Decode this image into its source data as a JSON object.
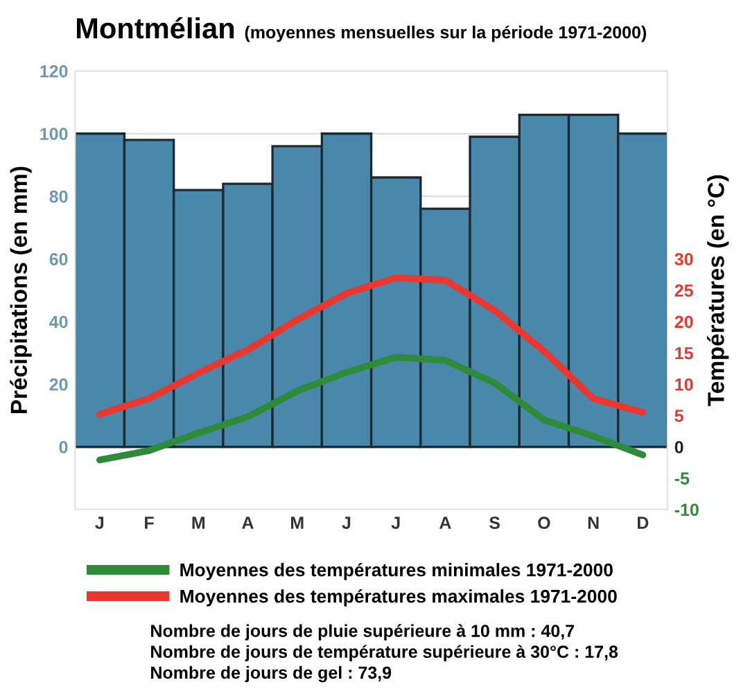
{
  "chart_data": {
    "type": "bar",
    "title": "Montmélian",
    "subtitle": "(moyennes mensuelles sur la période 1971-2000)",
    "ylabel": "Précipitations (en mm)",
    "y2label": "Températures (en °C)",
    "categories": [
      "J",
      "F",
      "M",
      "A",
      "M",
      "J",
      "J",
      "A",
      "S",
      "O",
      "N",
      "D"
    ],
    "series": [
      {
        "color": "#4a88ab",
        "values": [
          100,
          98,
          82,
          84,
          96,
          100,
          86,
          76,
          99,
          106,
          106,
          100
        ]
      },
      {
        "type": "line",
        "axis": "y2",
        "name": "Moyennes des températures minimales 1971-2000",
        "color": "#2e8b3a",
        "values": [
          -2.1,
          -0.6,
          2.2,
          4.8,
          8.9,
          11.9,
          14.3,
          13.8,
          10.2,
          4.3,
          1.7,
          -1.3
        ]
      },
      {
        "type": "line",
        "axis": "y2",
        "name": "Moyennes des températures maximales 1971-2000",
        "color": "#e8382f",
        "values": [
          5.2,
          7.7,
          11.8,
          15.5,
          20.3,
          24.5,
          27,
          26.6,
          21.8,
          15.3,
          7.7,
          5.5
        ]
      }
    ],
    "ylim": [
      -20,
      120
    ],
    "yticks": [
      0,
      20,
      40,
      60,
      80,
      100,
      120
    ],
    "y2lim": [
      -10,
      60
    ],
    "y2ticks": [
      -10,
      -5,
      0,
      5,
      10,
      15,
      20,
      25,
      30
    ],
    "grid": "y",
    "legend": "bottom",
    "annotations": [
      "Nombre de jours de pluie supérieure à 10 mm : 40,7",
      "Nombre de jours de température supérieure à 30°C : 17,8",
      "Nombre de jours de gel : 73,9"
    ]
  }
}
